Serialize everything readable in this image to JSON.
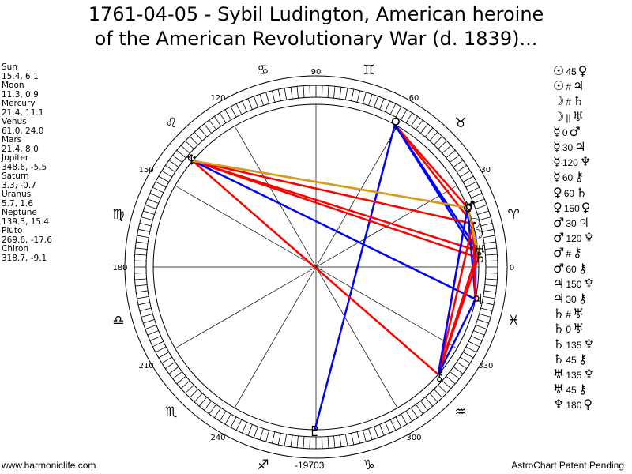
{
  "title_line1": "1761-04-05 - Sybil Ludington, American heroine",
  "title_line2": "of the American Revolutionary War (d. 1839)...",
  "planets": [
    {
      "name": "Sun",
      "coords": "15.4, 6.1"
    },
    {
      "name": "Moon",
      "coords": "11.3, 0.9"
    },
    {
      "name": "Mercury",
      "coords": "21.4, 11.1"
    },
    {
      "name": "Venus",
      "coords": "61.0, 24.0"
    },
    {
      "name": "Mars",
      "coords": "21.4, 8.0"
    },
    {
      "name": "Jupiter",
      "coords": "348.6, -5.5"
    },
    {
      "name": "Saturn",
      "coords": "3.3, -0.7"
    },
    {
      "name": "Uranus",
      "coords": "5.7, 1.6"
    },
    {
      "name": "Neptune",
      "coords": "139.3, 15.4"
    },
    {
      "name": "Pluto",
      "coords": "269.6, -17.6"
    },
    {
      "name": "Chiron",
      "coords": "318.7, -9.1"
    }
  ],
  "aspects": [
    {
      "p1": "☉",
      "a": "45",
      "p2": "♀"
    },
    {
      "p1": "☉",
      "a": "#",
      "p2": "♃"
    },
    {
      "p1": "☽",
      "a": "#",
      "p2": "♄"
    },
    {
      "p1": "☽",
      "a": "||",
      "p2": "♅"
    },
    {
      "p1": "☿",
      "a": "0",
      "p2": "♂"
    },
    {
      "p1": "☿",
      "a": "30",
      "p2": "♃"
    },
    {
      "p1": "☿",
      "a": "120",
      "p2": "♆"
    },
    {
      "p1": "☿",
      "a": "60",
      "p2": "⚷"
    },
    {
      "p1": "♀",
      "a": "60",
      "p2": "♄"
    },
    {
      "p1": "♀",
      "a": "150",
      "p2": "♀"
    },
    {
      "p1": "♂",
      "a": "30",
      "p2": "♃"
    },
    {
      "p1": "♂",
      "a": "120",
      "p2": "♆"
    },
    {
      "p1": "♂",
      "a": "#",
      "p2": "⚷"
    },
    {
      "p1": "♂",
      "a": "60",
      "p2": "⚷"
    },
    {
      "p1": "♃",
      "a": "150",
      "p2": "♆"
    },
    {
      "p1": "♃",
      "a": "30",
      "p2": "⚷"
    },
    {
      "p1": "♄",
      "a": "#",
      "p2": "♅"
    },
    {
      "p1": "♄",
      "a": "0",
      "p2": "♅"
    },
    {
      "p1": "♄",
      "a": "135",
      "p2": "♆"
    },
    {
      "p1": "♄",
      "a": "45",
      "p2": "⚷"
    },
    {
      "p1": "♅",
      "a": "135",
      "p2": "♆"
    },
    {
      "p1": "♅",
      "a": "45",
      "p2": "⚷"
    },
    {
      "p1": "♆",
      "a": "180",
      "p2": "♀"
    }
  ],
  "wheel": {
    "degree_labels": [
      {
        "text": "0",
        "deg": 0
      },
      {
        "text": "30",
        "deg": 30
      },
      {
        "text": "60",
        "deg": 60
      },
      {
        "text": "90",
        "deg": 90
      },
      {
        "text": "120",
        "deg": 120
      },
      {
        "text": "150",
        "deg": 150
      },
      {
        "text": "180",
        "deg": 180
      },
      {
        "text": "210",
        "deg": 210
      },
      {
        "text": "240",
        "deg": 240
      },
      {
        "text": "300",
        "deg": 300
      },
      {
        "text": "330",
        "deg": 330
      }
    ],
    "zodiac": [
      {
        "sym": "♈",
        "deg": 15,
        "name": "aries"
      },
      {
        "sym": "♉",
        "deg": 45,
        "name": "taurus"
      },
      {
        "sym": "♊",
        "deg": 75,
        "name": "gemini"
      },
      {
        "sym": "♋",
        "deg": 105,
        "name": "cancer"
      },
      {
        "sym": "♌",
        "deg": 135,
        "name": "leo"
      },
      {
        "sym": "♍",
        "deg": 165,
        "name": "virgo"
      },
      {
        "sym": "♎",
        "deg": 195,
        "name": "libra"
      },
      {
        "sym": "♏",
        "deg": 225,
        "name": "scorpio"
      },
      {
        "sym": "♐",
        "deg": 255,
        "name": "sagittarius"
      },
      {
        "sym": "♑",
        "deg": 285,
        "name": "capricorn"
      },
      {
        "sym": "♒",
        "deg": 315,
        "name": "aquarius"
      },
      {
        "sym": "♓",
        "deg": 345,
        "name": "pisces"
      }
    ],
    "planet_glyphs": [
      {
        "key": "venus",
        "sym": "♀",
        "deg": 61.0
      },
      {
        "key": "neptune",
        "sym": "♆",
        "deg": 139.3
      },
      {
        "key": "mars",
        "sym": "♂",
        "deg": 21.4
      },
      {
        "key": "mercury",
        "sym": "☿",
        "deg": 21.4
      },
      {
        "key": "sun",
        "sym": "☉",
        "deg": 15.4
      },
      {
        "key": "moon",
        "sym": "☽",
        "deg": 11.3
      },
      {
        "key": "uranus",
        "sym": "♅",
        "deg": 5.7
      },
      {
        "key": "saturn",
        "sym": "♄",
        "deg": 3.3
      },
      {
        "key": "jupiter",
        "sym": "♃",
        "deg": 348.6
      },
      {
        "key": "chiron",
        "sym": "⚷",
        "deg": 318.7
      },
      {
        "key": "pluto",
        "sym": "♇",
        "deg": 269.6
      }
    ],
    "aspect_lines": [
      {
        "a": 61.0,
        "b": 21.4,
        "color": "#ff0000"
      },
      {
        "a": 61.0,
        "b": 15.4,
        "color": "#ff0000"
      },
      {
        "a": 61.0,
        "b": 3.3,
        "color": "#0000ff"
      },
      {
        "a": 61.0,
        "b": 5.7,
        "color": "#0000ff"
      },
      {
        "a": 61.0,
        "b": 269.6,
        "color": "#0000ff"
      },
      {
        "a": 139.3,
        "b": 21.4,
        "color": "#ff0000"
      },
      {
        "a": 139.3,
        "b": 15.4,
        "color": "#ff0000"
      },
      {
        "a": 139.3,
        "b": 3.3,
        "color": "#ff0000"
      },
      {
        "a": 139.3,
        "b": 5.7,
        "color": "#ff0000"
      },
      {
        "a": 139.3,
        "b": 348.6,
        "color": "#0000ff"
      },
      {
        "a": 139.3,
        "b": 318.7,
        "color": "#ff0000"
      },
      {
        "a": 139.3,
        "b": 21.4,
        "color": "#d4a017"
      },
      {
        "a": 21.4,
        "b": 348.6,
        "color": "#0000ff"
      },
      {
        "a": 21.4,
        "b": 318.7,
        "color": "#ff0000"
      },
      {
        "a": 15.4,
        "b": 318.7,
        "color": "#ff0000"
      },
      {
        "a": 11.3,
        "b": 348.6,
        "color": "#0000ff"
      },
      {
        "a": 5.7,
        "b": 318.7,
        "color": "#ff0000"
      },
      {
        "a": 3.3,
        "b": 318.7,
        "color": "#ff0000"
      },
      {
        "a": 15.4,
        "b": 348.6,
        "color": "#ff0000"
      },
      {
        "a": 348.6,
        "b": 318.7,
        "color": "#0000ff"
      },
      {
        "a": 318.7,
        "b": 21.4,
        "color": "#0000ff"
      },
      {
        "a": 21.4,
        "b": 5.7,
        "color": "#d4a017"
      },
      {
        "a": 21.4,
        "b": 3.3,
        "color": "#d4a017"
      }
    ]
  },
  "footer": {
    "left": "www.harmoniclife.com",
    "mid": "-19703",
    "right": "AstroChart Patent Pending"
  }
}
